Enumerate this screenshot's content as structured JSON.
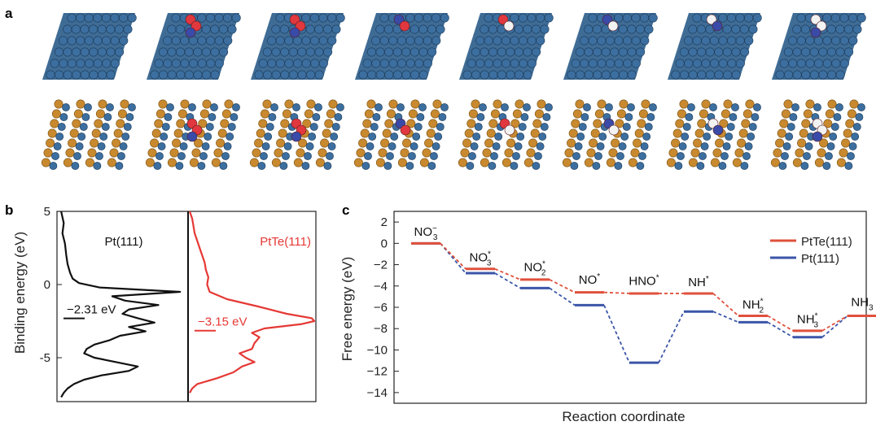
{
  "panel_labels": {
    "a": "a",
    "b": "b",
    "c": "c"
  },
  "panel_a": {
    "rows": [
      "Pt(111)",
      "PtTe(111)"
    ],
    "frames_per_row": 8,
    "adsorbates": [
      "",
      "NO3*",
      "NO3*",
      "NO2*",
      "NO*",
      "HNO*",
      "NH*",
      "NH2*"
    ]
  },
  "colors": {
    "pt_atom": "#3c6fa0",
    "te_atom": "#c8892f",
    "oxygen": "#e0383e",
    "nitrogen": "#3a4aa8",
    "hydrogen": "#f2f2f2",
    "pt_curve": "#111111",
    "ptte_curve": "#e53935",
    "pt_level": "#3b56a8",
    "ptte_level": "#e0503c"
  },
  "chart_data": [
    {
      "type": "line",
      "panel": "b",
      "ylabel": "Binding energy (eV)",
      "xlabel": "",
      "ylim": [
        -8,
        5
      ],
      "yticks": [
        "5",
        "0",
        "-5"
      ],
      "ytick_values": [
        5,
        0,
        -5
      ],
      "subpanels": [
        {
          "name": "Pt(111)",
          "label": "Pt(111)",
          "d_band_center": -2.31,
          "d_band_label": "−2.31 eV",
          "energy": [
            5,
            4.2,
            3.5,
            2.8,
            2.0,
            1.4,
            0.8,
            0.4,
            0.1,
            -0.2,
            -0.5,
            -0.8,
            -1.1,
            -1.4,
            -1.7,
            -2.0,
            -2.3,
            -2.6,
            -2.9,
            -3.2,
            -3.5,
            -3.8,
            -4.1,
            -4.4,
            -4.7,
            -5.0,
            -5.3,
            -5.6,
            -5.9,
            -6.2,
            -6.5,
            -6.8,
            -7.1,
            -7.4,
            -7.7
          ],
          "dos": [
            0.02,
            0.04,
            0.03,
            0.05,
            0.06,
            0.07,
            0.09,
            0.11,
            0.16,
            0.32,
            0.95,
            0.42,
            0.52,
            0.78,
            0.55,
            0.5,
            0.62,
            0.75,
            0.55,
            0.68,
            0.48,
            0.4,
            0.28,
            0.22,
            0.2,
            0.28,
            0.45,
            0.62,
            0.55,
            0.34,
            0.2,
            0.12,
            0.07,
            0.04,
            0.02
          ]
        },
        {
          "name": "PtTe(111)",
          "label": "PtTe(111)",
          "d_band_center": -3.15,
          "d_band_label": "−3.15 eV",
          "energy": [
            5,
            4.5,
            4.0,
            3.5,
            3.0,
            2.5,
            2.0,
            1.5,
            1.0,
            0.5,
            0.0,
            -0.5,
            -1.0,
            -1.5,
            -2.0,
            -2.3,
            -2.5,
            -2.7,
            -3.0,
            -3.3,
            -3.6,
            -4.0,
            -4.4,
            -4.7,
            -5.0,
            -5.3,
            -5.6,
            -6.0,
            -6.4,
            -6.8,
            -7.1,
            -7.4
          ],
          "dos": [
            0.0,
            0.02,
            0.03,
            0.04,
            0.06,
            0.08,
            0.1,
            0.12,
            0.13,
            0.15,
            0.14,
            0.16,
            0.3,
            0.55,
            0.78,
            0.98,
            1.0,
            0.9,
            0.6,
            0.5,
            0.56,
            0.52,
            0.5,
            0.4,
            0.45,
            0.52,
            0.42,
            0.35,
            0.22,
            0.06,
            0.02,
            0.0
          ]
        }
      ]
    },
    {
      "type": "line",
      "panel": "c",
      "title": "",
      "xlabel": "Reaction coordinate",
      "ylabel": "Free energy (eV)",
      "ylim": [
        -15,
        3
      ],
      "yticks": [
        "2",
        "0",
        "−2",
        "−4",
        "−6",
        "−8",
        "−10",
        "−12",
        "−14"
      ],
      "ytick_values": [
        2,
        0,
        -2,
        -4,
        -6,
        -8,
        -10,
        -12,
        -14
      ],
      "grid": false,
      "legend": "top-right",
      "step_labels": [
        {
          "base": "NO",
          "sub": "3",
          "sup": "−",
          "y": 0.7
        },
        {
          "base": "NO",
          "sub": "3",
          "sup": "*",
          "y": -1.7
        },
        {
          "base": "NO",
          "sub": "2",
          "sup": "*",
          "y": -2.6
        },
        {
          "base": "NO",
          "sub": "",
          "sup": "*",
          "y": -3.8
        },
        {
          "base": "HNO",
          "sub": "",
          "sup": "*",
          "y": -3.9
        },
        {
          "base": "NH",
          "sub": "",
          "sup": "*",
          "y": -4.0
        },
        {
          "base": "NH",
          "sub": "2",
          "sup": "*",
          "y": -6.1
        },
        {
          "base": "NH",
          "sub": "3",
          "sup": "*",
          "y": -7.5
        },
        {
          "base": "NH",
          "sub": "3",
          "sup": "",
          "y": -5.9
        }
      ],
      "x": [
        0,
        1,
        2,
        3,
        4,
        5,
        6,
        7,
        8
      ],
      "series": [
        {
          "name": "PtTe(111)",
          "values": [
            0,
            -2.4,
            -3.4,
            -4.6,
            -4.7,
            -4.7,
            -6.8,
            -8.2,
            -6.8
          ]
        },
        {
          "name": "Pt(111)",
          "values": [
            0,
            -2.8,
            -4.2,
            -5.8,
            -11.2,
            -6.4,
            -7.4,
            -8.8,
            -6.8
          ]
        }
      ]
    }
  ]
}
